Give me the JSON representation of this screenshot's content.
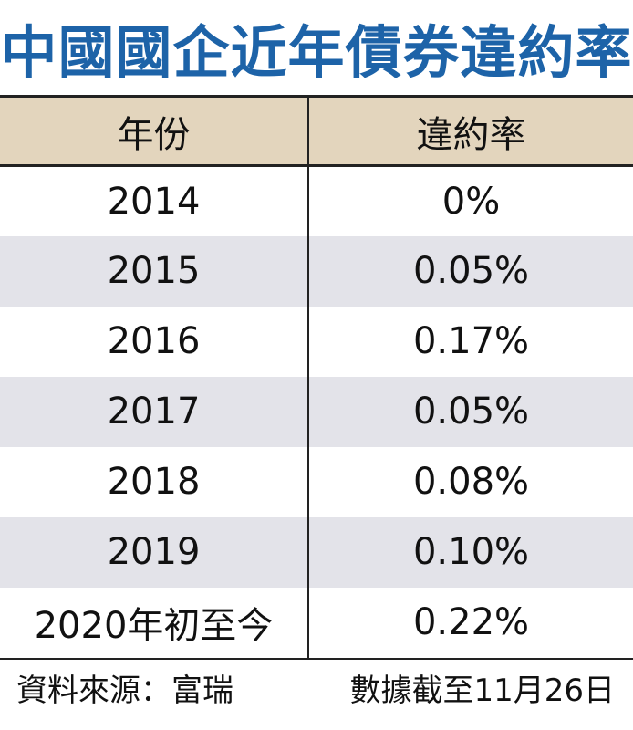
{
  "title": "中國國企近年債券違約率",
  "chart_data": {
    "type": "table",
    "title": "中國國企近年債券違約率",
    "columns": [
      "年份",
      "違約率"
    ],
    "rows": [
      [
        "2014",
        "0%"
      ],
      [
        "2015",
        "0.05%"
      ],
      [
        "2016",
        "0.17%"
      ],
      [
        "2017",
        "0.05%"
      ],
      [
        "2018",
        "0.08%"
      ],
      [
        "2019",
        "0.10%"
      ],
      [
        "2020年初至今",
        "0.22%"
      ]
    ]
  },
  "footer": {
    "source": "資料來源：富瑞",
    "note": "數據截至11月26日"
  },
  "colors": {
    "title": "#1d63a8",
    "header_bg": "#e3d5bd",
    "stripe_bg": "#e3e3e9"
  }
}
